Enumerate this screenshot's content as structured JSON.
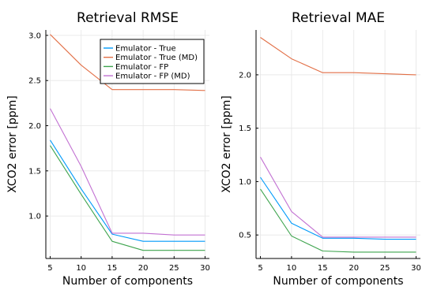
{
  "chart_data": [
    {
      "type": "line",
      "title": "Retrieval RMSE",
      "xlabel": "Number of components",
      "ylabel": "XCO2 error [ppm]",
      "xlim": [
        4.3,
        30.7
      ],
      "ylim": [
        0.53,
        3.06
      ],
      "x_ticks": [
        5,
        10,
        15,
        20,
        25,
        30
      ],
      "y_ticks": [
        1.0,
        1.5,
        2.0,
        2.5,
        3.0
      ],
      "x_tick_labels": [
        "5",
        "10",
        "15",
        "20",
        "25",
        "30"
      ],
      "y_tick_labels": [
        "1.0",
        "1.5",
        "2.0",
        "2.5",
        "3.0"
      ],
      "grid": true,
      "legend": "top-right",
      "x": [
        5,
        10,
        15,
        20,
        25,
        30
      ],
      "series": [
        {
          "name": "Emulator - True",
          "color": "#009AFA",
          "values": [
            1.84,
            1.3,
            0.8,
            0.72,
            0.72,
            0.72
          ]
        },
        {
          "name": "Emulator - True (MD)",
          "color": "#E26F46",
          "values": [
            3.01,
            2.67,
            2.4,
            2.4,
            2.4,
            2.39
          ]
        },
        {
          "name": "Emulator - FP",
          "color": "#3EA44E",
          "values": [
            1.78,
            1.24,
            0.72,
            0.62,
            0.62,
            0.62
          ]
        },
        {
          "name": "Emulator - FP (MD)",
          "color": "#C271D2",
          "values": [
            2.19,
            1.55,
            0.81,
            0.81,
            0.79,
            0.79
          ]
        }
      ]
    },
    {
      "type": "line",
      "title": "Retrieval MAE",
      "xlabel": "Number of components",
      "ylabel": "XCO2 error [ppm]",
      "xlim": [
        4.3,
        30.7
      ],
      "ylim": [
        0.28,
        2.42
      ],
      "x_ticks": [
        5,
        10,
        15,
        20,
        25,
        30
      ],
      "y_ticks": [
        0.5,
        1.0,
        1.5,
        2.0
      ],
      "x_tick_labels": [
        "5",
        "10",
        "15",
        "20",
        "25",
        "30"
      ],
      "y_tick_labels": [
        "0.5",
        "1.0",
        "1.5",
        "2.0"
      ],
      "grid": true,
      "legend": "none",
      "x": [
        5,
        10,
        15,
        20,
        25,
        30
      ],
      "series": [
        {
          "color": "#009AFA",
          "values": [
            1.04,
            0.61,
            0.47,
            0.47,
            0.46,
            0.46
          ]
        },
        {
          "color": "#E26F46",
          "values": [
            2.35,
            2.15,
            2.02,
            2.02,
            2.01,
            2.0
          ]
        },
        {
          "color": "#3EA44E",
          "values": [
            0.93,
            0.49,
            0.35,
            0.34,
            0.34,
            0.34
          ]
        },
        {
          "color": "#C271D2",
          "values": [
            1.23,
            0.72,
            0.48,
            0.48,
            0.48,
            0.48
          ]
        }
      ]
    }
  ]
}
